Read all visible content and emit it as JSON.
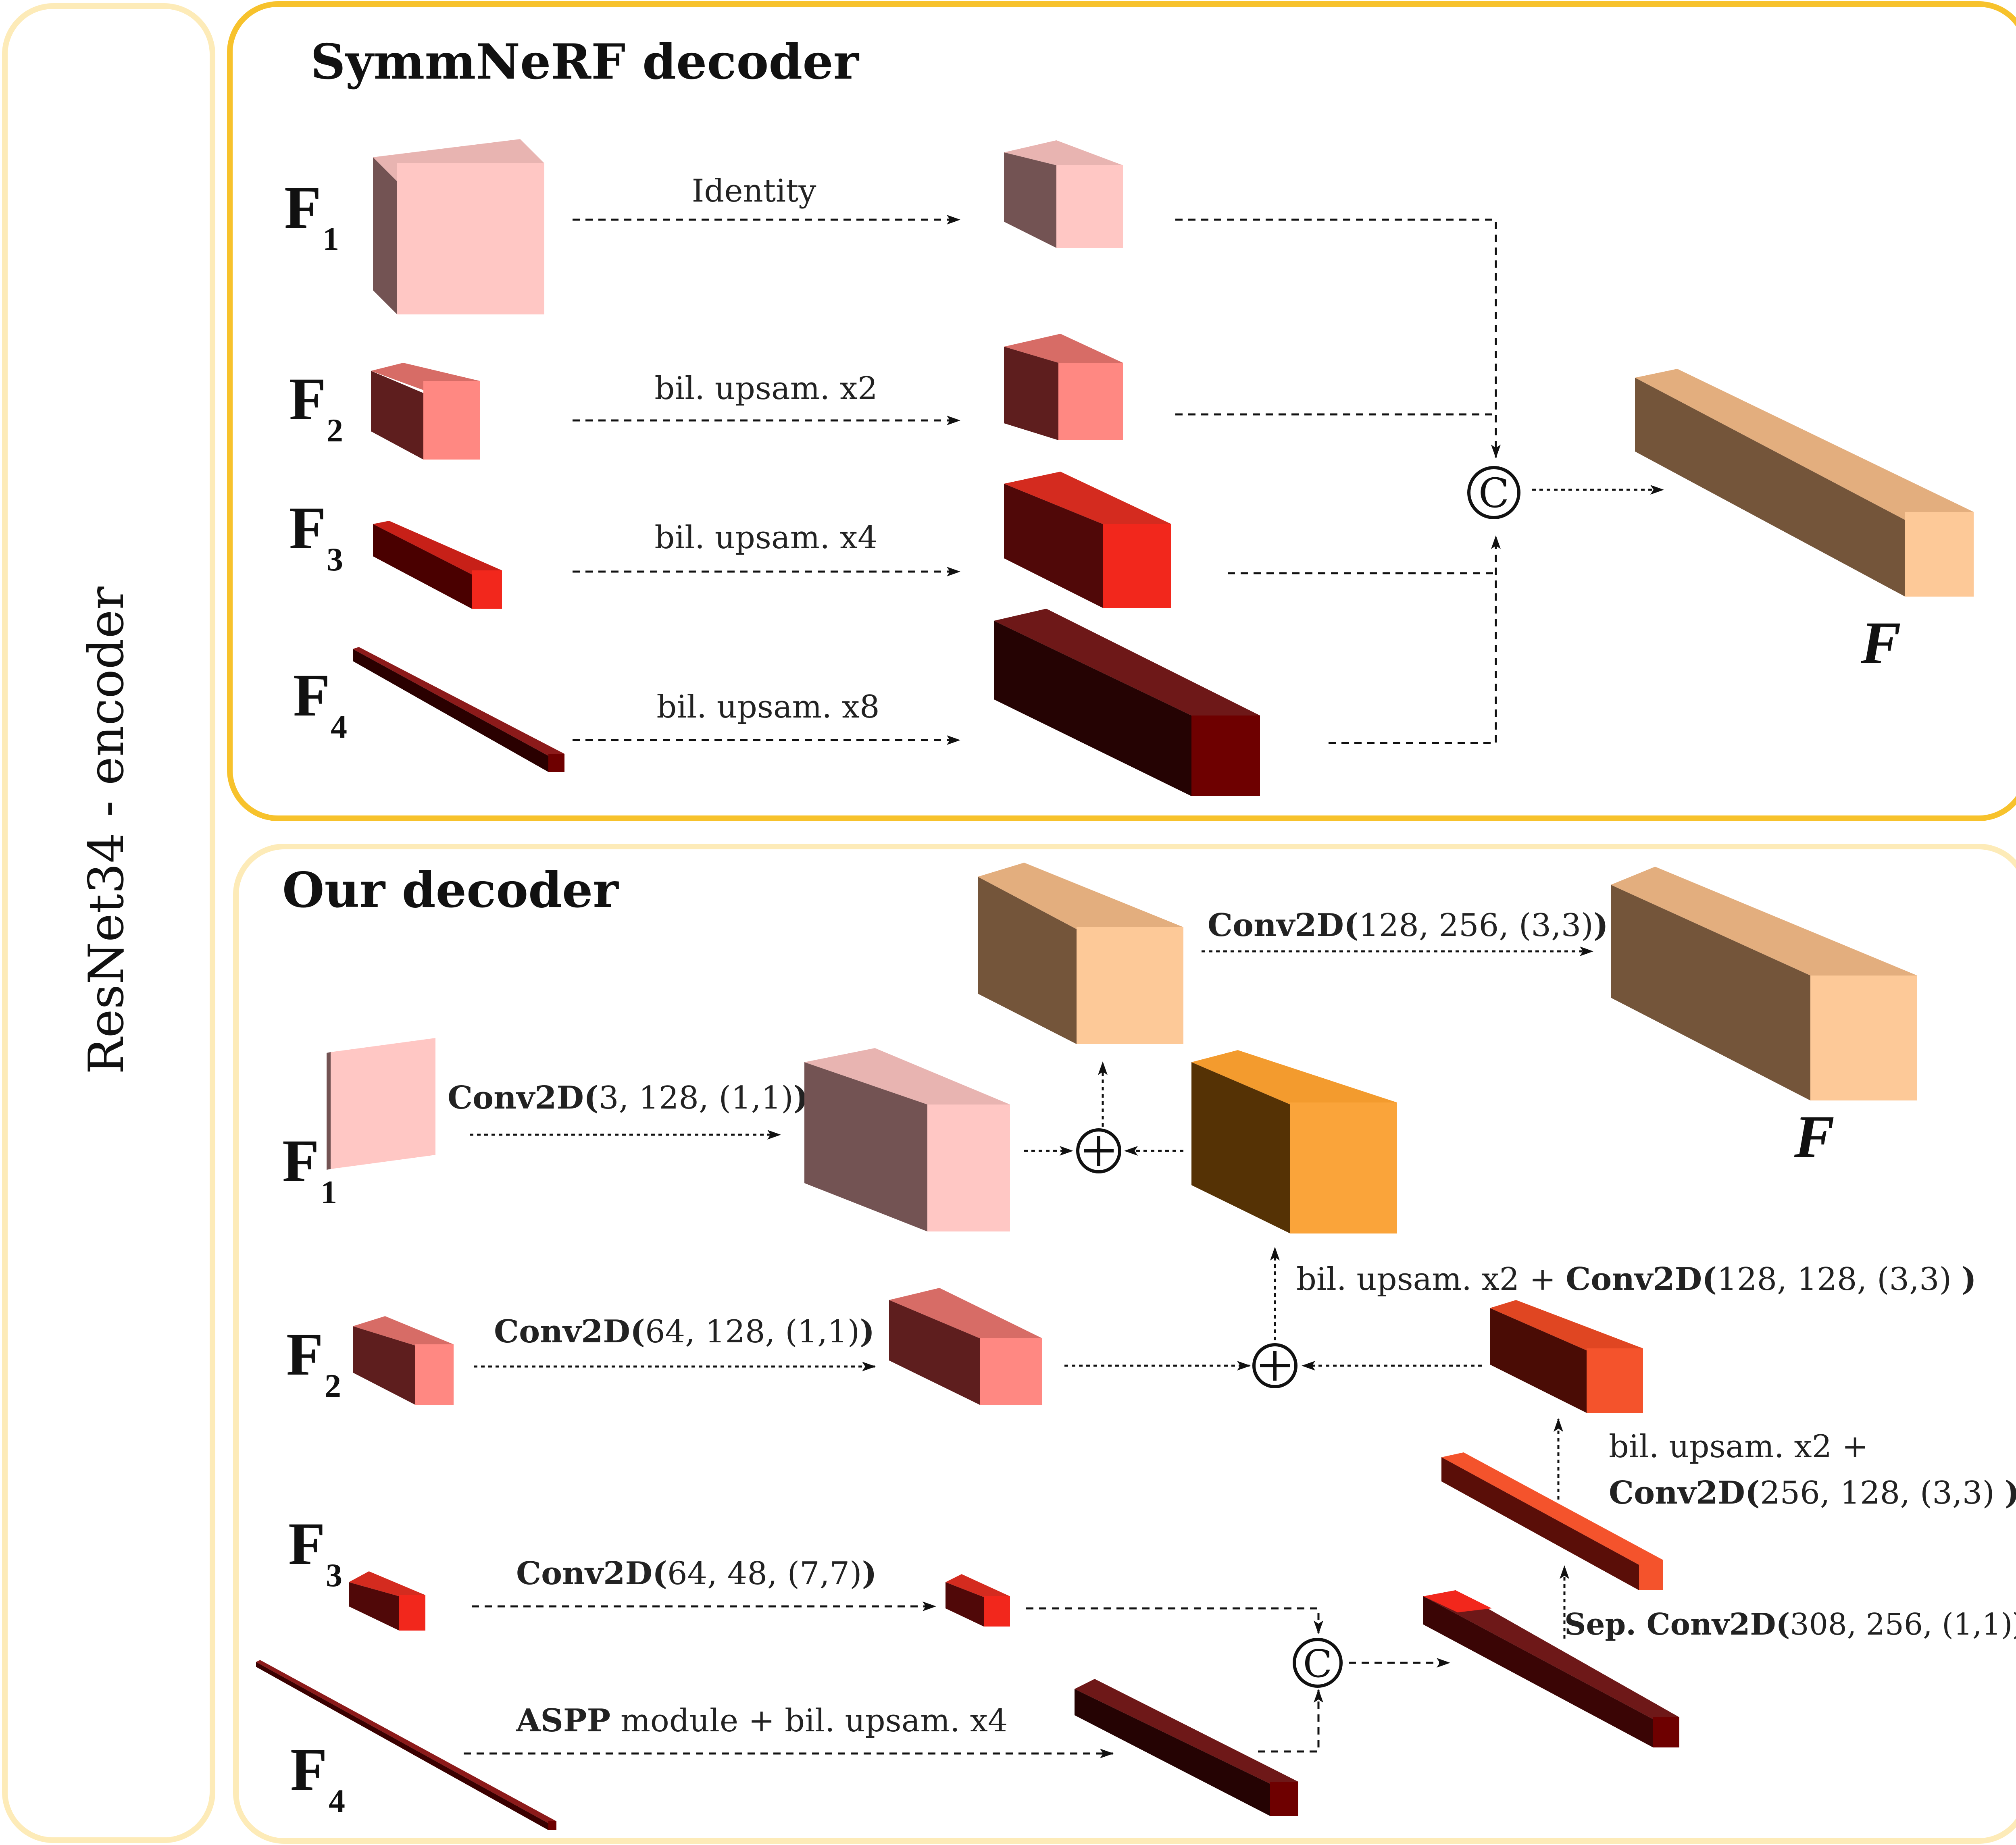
{
  "encoder_label": "ResNet34 - encoder",
  "colors": {
    "panel_top_border": "#F7C22C",
    "panel_light_border": "#FDEBB8",
    "f1": "#FFC7C4",
    "f2": "#FF8882",
    "f3": "#F2271C",
    "f4": "#6E0000",
    "output": "#FDC998",
    "orange": "#FAA43A",
    "red_orange": "#F4532C"
  },
  "top_panel": {
    "title": "SymmNeRF decoder",
    "labels": [
      {
        "main": "F",
        "sub": "1"
      },
      {
        "main": "F",
        "sub": "2"
      },
      {
        "main": "F",
        "sub": "3"
      },
      {
        "main": "F",
        "sub": "4"
      }
    ],
    "ops": [
      "Identity",
      "bil. upsam. x2",
      "bil. upsam. x4",
      "bil. upsam. x8"
    ],
    "concat_symbol": "©",
    "output_label": "F"
  },
  "bottom_panel": {
    "title": "Our decoder",
    "labels": [
      {
        "main": "F",
        "sub": "1"
      },
      {
        "main": "F",
        "sub": "2"
      },
      {
        "main": "F",
        "sub": "3"
      },
      {
        "main": "F",
        "sub": "4"
      }
    ],
    "ops": {
      "f1": {
        "bold": "Conv2D(",
        "rest": "3, 128, (1,1)",
        "close": ")"
      },
      "f2": {
        "bold": "Conv2D(",
        "rest": "64, 128, (1,1)",
        "close": ")"
      },
      "f3": {
        "bold": "Conv2D(",
        "rest": "64, 48, (7,7)",
        "close": ")"
      },
      "f4": {
        "bold": "ASPP",
        "rest": " module + bil. upsam. x4"
      },
      "sep": {
        "bold": "Sep. Conv2D(",
        "rest": "308, 256, (1,1)",
        "close": ")"
      },
      "up1_line1": "bil. upsam. x2 +",
      "up1_line2": {
        "bold": "Conv2D(",
        "rest": "256, 128, (3,3) ",
        "close": ")"
      },
      "up2": {
        "plain": "bil. upsam. x2 + ",
        "bold": "Conv2D(",
        "rest": "128, 128, (3,3) ",
        "close": ")"
      },
      "final": {
        "bold": "Conv2D(",
        "rest": "128, 256, (3,3)",
        "close": ")"
      }
    },
    "plus_symbol": "+",
    "concat_symbol": "©",
    "output_label": "F"
  }
}
